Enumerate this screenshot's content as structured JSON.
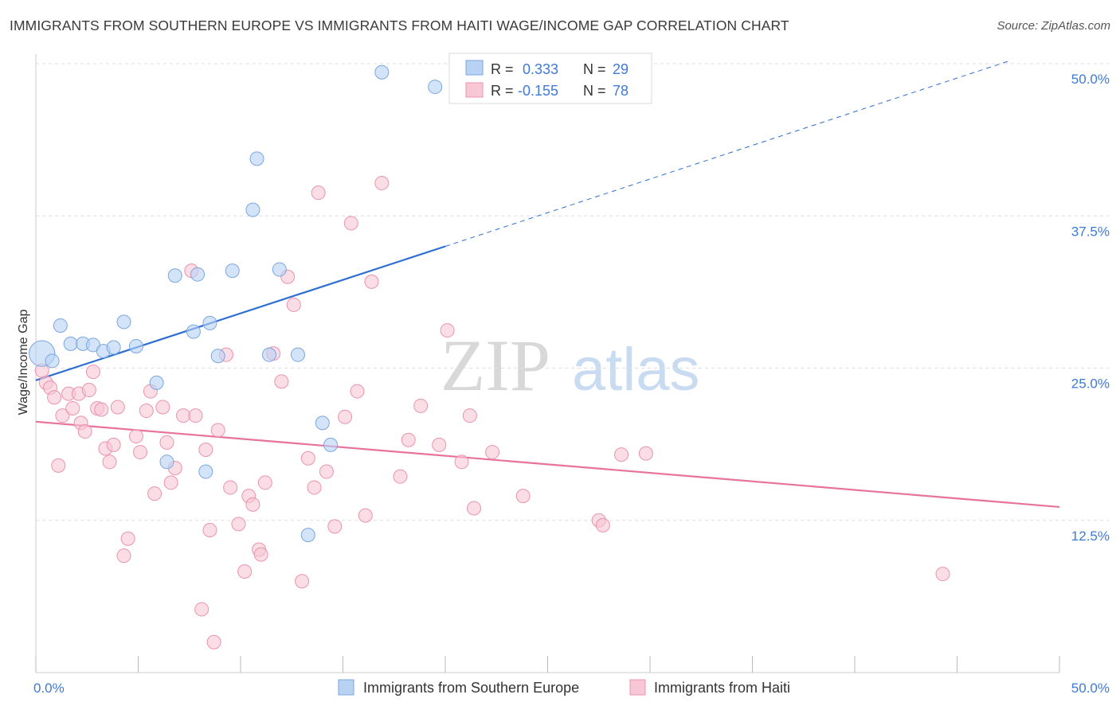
{
  "title": "IMMIGRANTS FROM SOUTHERN EUROPE VS IMMIGRANTS FROM HAITI WAGE/INCOME GAP CORRELATION CHART",
  "source": "Source: ZipAtlas.com",
  "watermark": {
    "zip": "ZIP",
    "atlas": "atlas"
  },
  "colors": {
    "blue_fill": "#b8d2f3",
    "blue_stroke": "#7aa6e0",
    "blue_line": "#2f6fd1",
    "pink_fill": "#f8c7d6",
    "pink_stroke": "#eb93ae",
    "pink_line": "#e8729b",
    "tick_label": "#3f7ad6",
    "grid": "#dddddd"
  },
  "stats": {
    "blue": {
      "r_label": "R =",
      "r_value": "0.333",
      "n_label": "N =",
      "n_value": "29"
    },
    "pink": {
      "r_label": "R =",
      "r_value": "-0.155",
      "n_label": "N =",
      "n_value": "78"
    }
  },
  "chart_data": {
    "type": "scatter",
    "xlabel": "",
    "ylabel": "Wage/Income Gap",
    "xlim": [
      0,
      50
    ],
    "ylim": [
      0,
      50
    ],
    "x_tick_labels": [
      "0.0%",
      "50.0%"
    ],
    "y_tick_labels": [
      "12.5%",
      "25.0%",
      "37.5%",
      "50.0%"
    ],
    "y_ticks": [
      12.5,
      25,
      37.5,
      50
    ],
    "legend_position": "bottom-center",
    "grid": true,
    "series": [
      {
        "name": "Immigrants from Southern Europe",
        "color": "#b8d2f3",
        "trend": {
          "x0": 0,
          "y0": 24.0,
          "x1": 20,
          "y1": 35.0,
          "dashed_to_x": 47.5,
          "dashed_to_y": 50.2
        },
        "points": [
          [
            0.3,
            26.2,
            1.9
          ],
          [
            0.8,
            25.6,
            1
          ],
          [
            1.2,
            28.5,
            1
          ],
          [
            1.7,
            27.0,
            1
          ],
          [
            2.3,
            27.0,
            1
          ],
          [
            2.8,
            26.9,
            1
          ],
          [
            3.3,
            26.4,
            1
          ],
          [
            3.8,
            26.7,
            1
          ],
          [
            4.3,
            28.8,
            1
          ],
          [
            4.9,
            26.8,
            1
          ],
          [
            5.9,
            23.8,
            1
          ],
          [
            6.4,
            17.3,
            1
          ],
          [
            6.8,
            32.6,
            1
          ],
          [
            7.7,
            28.0,
            1
          ],
          [
            7.9,
            32.7,
            1
          ],
          [
            8.5,
            28.7,
            1
          ],
          [
            8.9,
            26.0,
            1
          ],
          [
            8.3,
            16.5,
            1
          ],
          [
            9.6,
            33.0,
            1
          ],
          [
            10.6,
            38.0,
            1
          ],
          [
            10.8,
            42.2,
            1
          ],
          [
            11.4,
            26.1,
            1
          ],
          [
            11.9,
            33.1,
            1
          ],
          [
            12.8,
            26.1,
            1
          ],
          [
            13.3,
            11.3,
            1
          ],
          [
            14.0,
            20.5,
            1
          ],
          [
            14.4,
            18.7,
            1
          ],
          [
            16.9,
            49.3,
            1
          ],
          [
            19.5,
            48.1,
            1
          ]
        ]
      },
      {
        "name": "Immigrants from Haiti",
        "color": "#f8c7d6",
        "trend": {
          "x0": 0,
          "y0": 20.6,
          "x1": 50,
          "y1": 13.6
        },
        "points": [
          [
            0.3,
            24.8,
            1
          ],
          [
            0.5,
            23.8,
            1
          ],
          [
            0.7,
            23.4,
            1
          ],
          [
            0.9,
            22.6,
            1
          ],
          [
            1.1,
            17.0,
            1
          ],
          [
            1.3,
            21.1,
            1
          ],
          [
            1.6,
            22.9,
            1
          ],
          [
            1.8,
            21.7,
            1
          ],
          [
            2.1,
            22.9,
            1
          ],
          [
            2.2,
            20.5,
            1
          ],
          [
            2.4,
            19.8,
            1
          ],
          [
            2.6,
            23.2,
            1
          ],
          [
            2.8,
            24.7,
            1
          ],
          [
            3.0,
            21.7,
            1
          ],
          [
            3.2,
            21.6,
            1
          ],
          [
            3.4,
            18.4,
            1
          ],
          [
            3.6,
            17.3,
            1
          ],
          [
            3.8,
            18.7,
            1
          ],
          [
            4.0,
            21.8,
            1
          ],
          [
            4.3,
            9.6,
            1
          ],
          [
            4.5,
            11.0,
            1
          ],
          [
            4.9,
            19.4,
            1
          ],
          [
            5.1,
            18.1,
            1
          ],
          [
            5.4,
            21.5,
            1
          ],
          [
            5.6,
            23.1,
            1
          ],
          [
            5.8,
            14.7,
            1
          ],
          [
            6.2,
            21.8,
            1
          ],
          [
            6.4,
            18.9,
            1
          ],
          [
            6.6,
            15.6,
            1
          ],
          [
            6.8,
            16.8,
            1
          ],
          [
            7.2,
            21.1,
            1
          ],
          [
            7.6,
            33.0,
            1
          ],
          [
            7.8,
            21.1,
            1
          ],
          [
            8.1,
            5.2,
            1
          ],
          [
            8.3,
            18.3,
            1
          ],
          [
            8.5,
            11.7,
            1
          ],
          [
            8.7,
            2.5,
            1
          ],
          [
            8.9,
            19.9,
            1
          ],
          [
            9.3,
            26.1,
            1
          ],
          [
            9.5,
            15.2,
            1
          ],
          [
            9.9,
            12.2,
            1
          ],
          [
            10.2,
            8.3,
            1
          ],
          [
            10.4,
            14.5,
            1
          ],
          [
            10.6,
            13.8,
            1
          ],
          [
            10.9,
            10.1,
            1
          ],
          [
            11.0,
            9.7,
            1
          ],
          [
            11.2,
            15.6,
            1
          ],
          [
            11.6,
            26.2,
            1
          ],
          [
            12.0,
            23.9,
            1
          ],
          [
            12.3,
            32.5,
            1
          ],
          [
            12.6,
            30.2,
            1
          ],
          [
            13.0,
            7.5,
            1
          ],
          [
            13.3,
            17.6,
            1
          ],
          [
            13.6,
            15.2,
            1
          ],
          [
            13.8,
            39.4,
            1
          ],
          [
            14.2,
            16.5,
            1
          ],
          [
            14.6,
            12.0,
            1
          ],
          [
            15.1,
            21.0,
            1
          ],
          [
            15.4,
            36.9,
            1
          ],
          [
            15.7,
            23.1,
            1
          ],
          [
            16.1,
            12.9,
            1
          ],
          [
            16.4,
            32.1,
            1
          ],
          [
            16.9,
            40.2,
            1
          ],
          [
            17.8,
            16.1,
            1
          ],
          [
            18.2,
            19.1,
            1
          ],
          [
            18.8,
            21.9,
            1
          ],
          [
            19.7,
            18.7,
            1
          ],
          [
            20.1,
            28.1,
            1
          ],
          [
            20.8,
            17.3,
            1
          ],
          [
            21.2,
            21.1,
            1
          ],
          [
            21.4,
            13.5,
            1
          ],
          [
            22.3,
            18.1,
            1
          ],
          [
            23.8,
            14.5,
            1
          ],
          [
            27.5,
            12.5,
            1
          ],
          [
            27.7,
            12.1,
            1
          ],
          [
            28.6,
            17.9,
            1
          ],
          [
            29.8,
            18.0,
            1
          ],
          [
            44.3,
            8.1,
            1
          ]
        ]
      }
    ]
  }
}
